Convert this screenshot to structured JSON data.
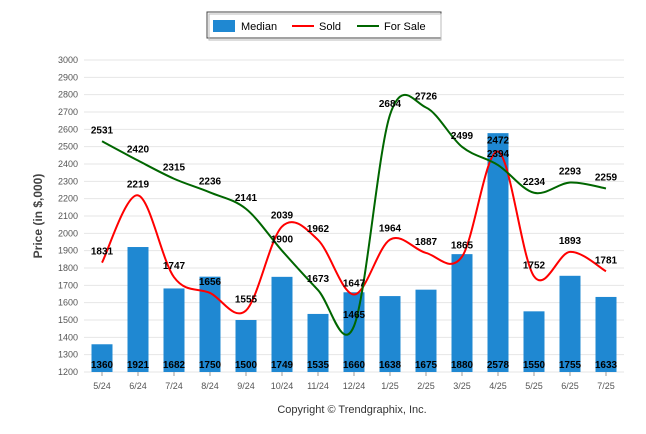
{
  "chart_data": {
    "type": "bar",
    "categories": [
      "5/24",
      "6/24",
      "7/24",
      "8/24",
      "9/24",
      "10/24",
      "11/24",
      "12/24",
      "1/25",
      "2/25",
      "3/25",
      "4/25",
      "5/25",
      "6/25",
      "7/25"
    ],
    "series": [
      {
        "name": "Median",
        "kind": "bar",
        "color": "#1f88d2",
        "values": [
          1360,
          1921,
          1682,
          1750,
          1500,
          1749,
          1535,
          1660,
          1638,
          1675,
          1880,
          2578,
          1550,
          1755,
          1633
        ]
      },
      {
        "name": "Sold",
        "kind": "line",
        "color": "#ff0000",
        "values": [
          1831,
          2219,
          1747,
          1656,
          1555,
          2039,
          1962,
          1647,
          1964,
          1887,
          1865,
          2472,
          1752,
          1893,
          1781
        ]
      },
      {
        "name": "For Sale",
        "kind": "line",
        "color": "#006600",
        "values": [
          2531,
          2420,
          2315,
          2236,
          2141,
          1900,
          1673,
          1465,
          2684,
          2726,
          2499,
          2394,
          2234,
          2293,
          2259
        ]
      }
    ],
    "xlabel": "",
    "ylabel": "Price (in $,000)",
    "ylim": [
      1200,
      3000
    ],
    "yticks": [
      1200,
      1300,
      1400,
      1500,
      1600,
      1700,
      1800,
      1900,
      2000,
      2100,
      2200,
      2300,
      2400,
      2500,
      2600,
      2700,
      2800,
      2900,
      3000
    ],
    "grid": true,
    "legend": "top-center"
  },
  "legend": {
    "median": "Median",
    "sold": "Sold",
    "for_sale": "For Sale"
  },
  "credit": "Copyright © Trendgraphix, Inc."
}
